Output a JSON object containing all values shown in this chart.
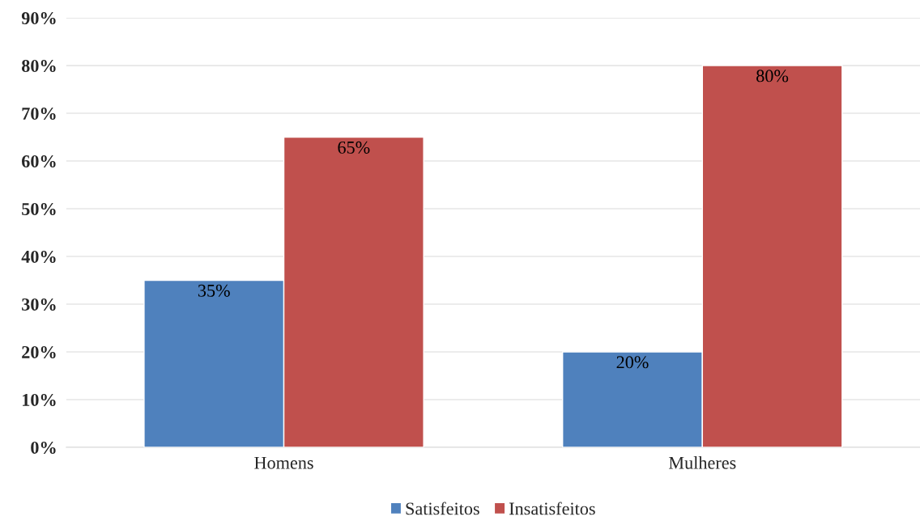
{
  "chart_data": {
    "type": "bar",
    "categories": [
      "Homens",
      "Mulheres"
    ],
    "series": [
      {
        "name": "Satisfeitos",
        "color": "#4f81bd",
        "values": [
          35,
          20
        ],
        "value_labels": [
          "35%",
          "20%"
        ]
      },
      {
        "name": "Insatisfeitos",
        "color": "#c0504d",
        "values": [
          65,
          80
        ],
        "value_labels": [
          "65%",
          "80%"
        ]
      }
    ],
    "ylim": [
      0,
      90
    ],
    "yticks": [
      {
        "value": 0,
        "label": "0%"
      },
      {
        "value": 10,
        "label": "10%"
      },
      {
        "value": 20,
        "label": "20%"
      },
      {
        "value": 30,
        "label": "30%"
      },
      {
        "value": 40,
        "label": "40%"
      },
      {
        "value": 50,
        "label": "50%"
      },
      {
        "value": 60,
        "label": "60%"
      },
      {
        "value": 70,
        "label": "70%"
      },
      {
        "value": 80,
        "label": "80%"
      },
      {
        "value": 90,
        "label": "90%"
      }
    ],
    "grid": "y",
    "legend": "bottom"
  }
}
